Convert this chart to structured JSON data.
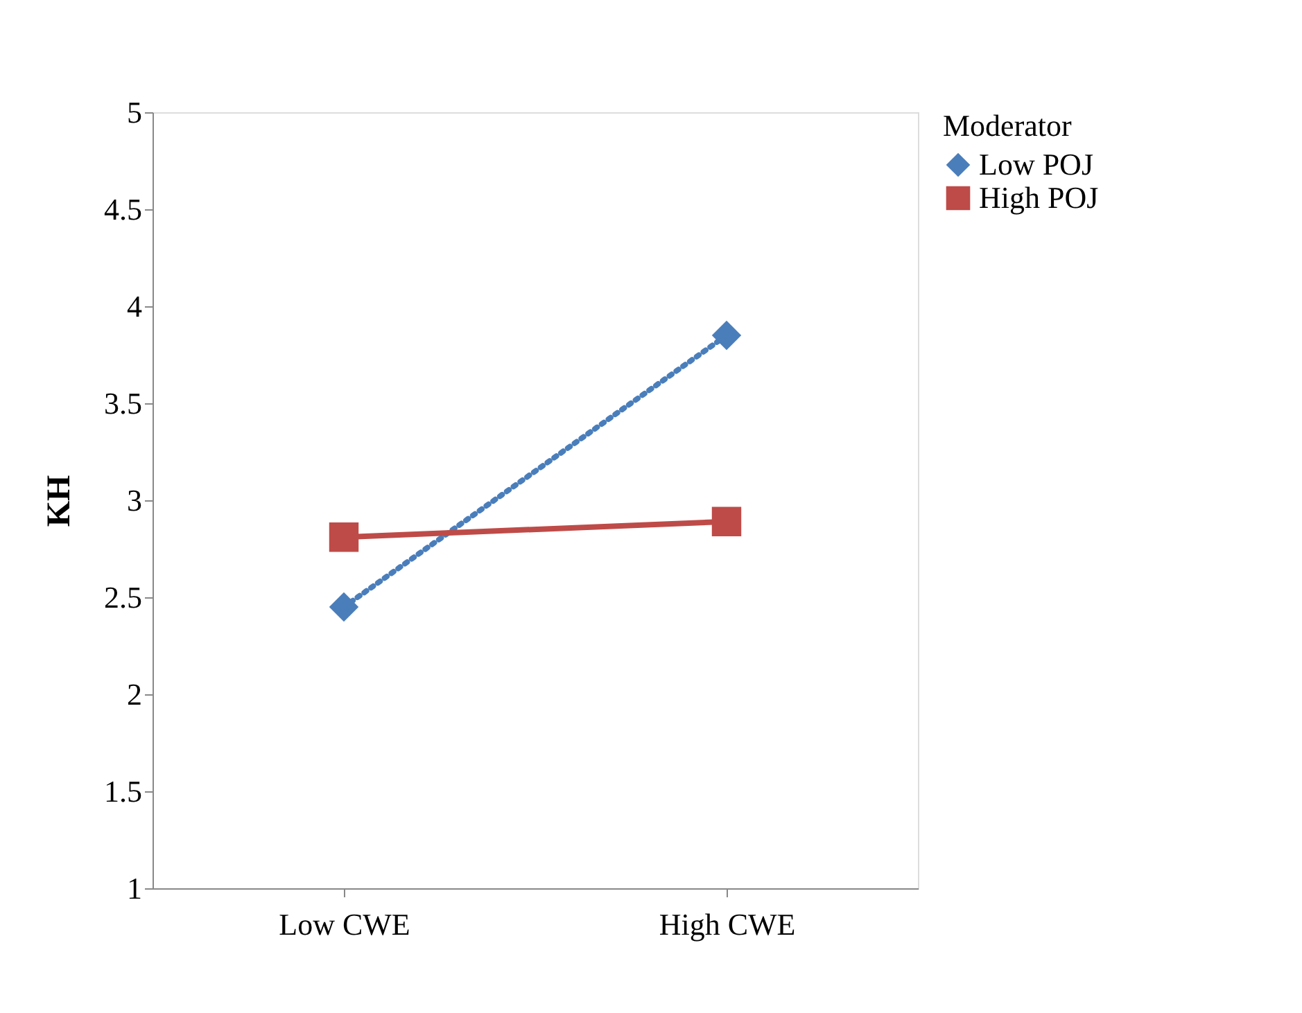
{
  "chart_data": {
    "type": "line",
    "ylabel": "KH",
    "legend_title": "Moderator",
    "categories": [
      "Low CWE",
      "High CWE"
    ],
    "series": [
      {
        "name": "Low POJ",
        "color": "#4a7ebb",
        "values": [
          2.45,
          3.85
        ],
        "marker": "diamond",
        "line_style": "dotted"
      },
      {
        "name": "High POJ",
        "color": "#be4b48",
        "values": [
          2.81,
          2.89
        ],
        "marker": "square",
        "line_style": "solid"
      }
    ],
    "ylim": [
      1,
      5
    ],
    "yticks": [
      1,
      1.5,
      2,
      2.5,
      3,
      3.5,
      4,
      4.5,
      5
    ],
    "grid": false,
    "legend": "right"
  }
}
